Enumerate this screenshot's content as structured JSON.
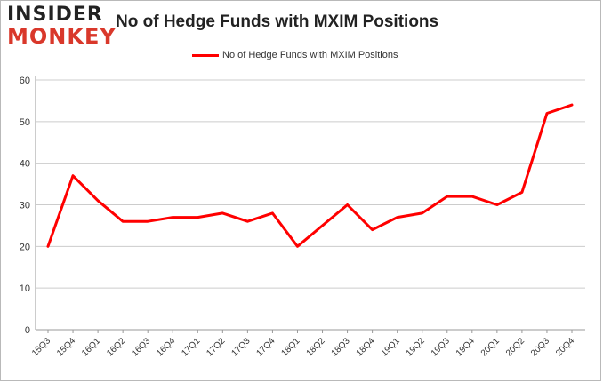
{
  "logo": {
    "line1": "INSIDER",
    "line2": "MONKEY"
  },
  "colors": {
    "series": "#ff0000",
    "grid": "#cccccc",
    "accent": "#d9382b"
  },
  "chart_data": {
    "type": "line",
    "title": "No of Hedge Funds with MXIM Positions",
    "legend": "top-center",
    "grid": true,
    "ylim": [
      0,
      60
    ],
    "yticks": [
      0,
      10,
      20,
      30,
      40,
      50,
      60
    ],
    "categories": [
      "15Q3",
      "15Q4",
      "16Q1",
      "16Q2",
      "16Q3",
      "16Q4",
      "17Q1",
      "17Q2",
      "17Q3",
      "17Q4",
      "18Q1",
      "18Q2",
      "18Q3",
      "18Q4",
      "19Q1",
      "19Q2",
      "19Q3",
      "19Q4",
      "20Q1",
      "20Q2",
      "20Q3",
      "20Q4"
    ],
    "series": [
      {
        "name": "No of Hedge Funds with MXIM Positions",
        "values": [
          20,
          37,
          31,
          26,
          26,
          27,
          27,
          28,
          26,
          28,
          20,
          25,
          30,
          24,
          27,
          28,
          32,
          32,
          30,
          33,
          52,
          54
        ]
      }
    ]
  }
}
